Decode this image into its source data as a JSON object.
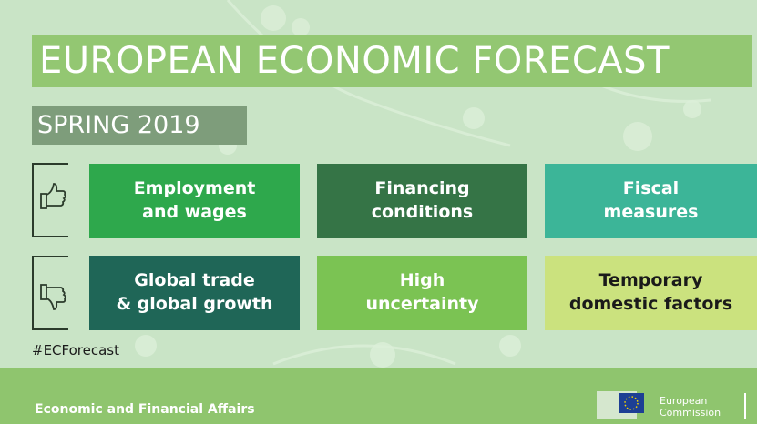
{
  "header": {
    "title": "EUROPEAN ECONOMIC FORECAST",
    "subtitle": "SPRING 2019"
  },
  "positives": [
    [
      "Employment",
      "and wages"
    ],
    [
      "Financing",
      "conditions"
    ],
    [
      "Fiscal",
      "measures"
    ]
  ],
  "negatives": [
    [
      "Global trade",
      "& global growth"
    ],
    [
      "High",
      "uncertainty"
    ],
    [
      "Temporary",
      "domestic factors"
    ]
  ],
  "hashtag": "#ECForecast",
  "footer": {
    "text": "Economic and Financial Affairs",
    "logo": [
      "European",
      "Commission"
    ]
  }
}
